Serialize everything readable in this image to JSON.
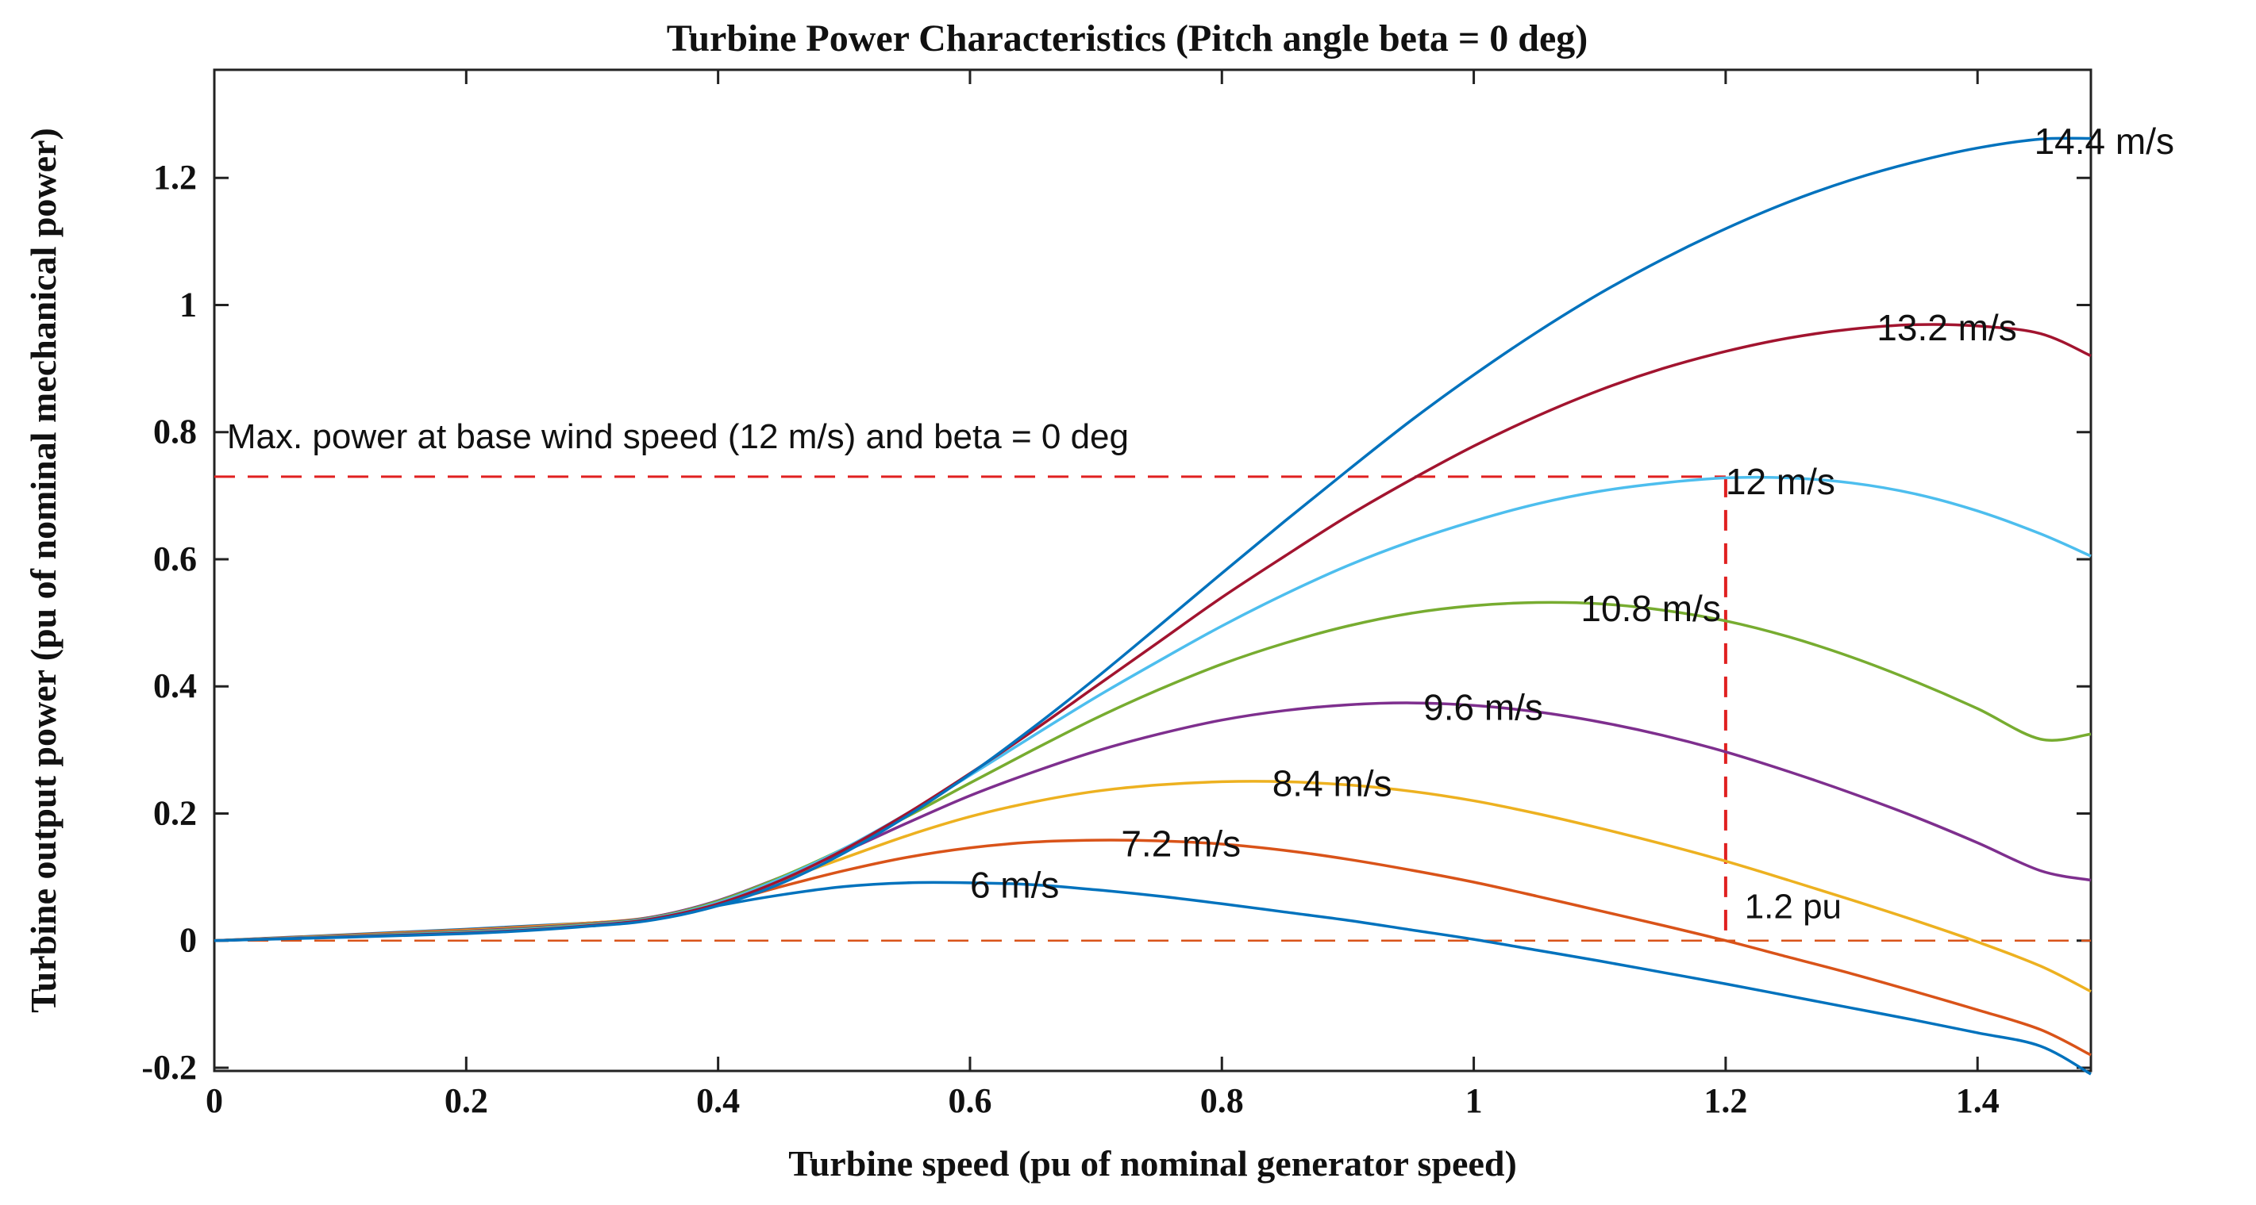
{
  "chart_data": {
    "type": "line",
    "title": "Turbine Power Characteristics (Pitch angle beta = 0 deg)",
    "xlabel": "Turbine speed (pu of nominal generator speed)",
    "ylabel": "Turbine output power (pu of nominal mechanical power)",
    "xlim": [
      0,
      1.49
    ],
    "ylim": [
      -0.205,
      1.37
    ],
    "xticks": [
      0,
      0.2,
      0.4,
      0.6,
      0.8,
      1,
      1.2,
      1.4
    ],
    "xtick_labels": [
      "0",
      "0.2",
      "0.4",
      "0.6",
      "0.8",
      "1",
      "1.2",
      "1.4"
    ],
    "yticks": [
      -0.2,
      0,
      0.2,
      0.4,
      0.6,
      0.8,
      1,
      1.2
    ],
    "ytick_labels": [
      "-0.2",
      "0",
      "0.2",
      "0.4",
      "0.6",
      "0.8",
      "1",
      "1.2"
    ],
    "grid": false,
    "series": [
      {
        "name": "6 m/s",
        "label": "6 m/s",
        "color": "#0072BD",
        "label_x": 0.6,
        "label_y": 0.085,
        "x": [
          0,
          0.2,
          0.3,
          0.35,
          0.4,
          0.45,
          0.5,
          0.55,
          0.6,
          0.65,
          0.7,
          0.75,
          0.8,
          0.85,
          0.9,
          0.95,
          1.0,
          1.05,
          1.1,
          1.15,
          1.2,
          1.25,
          1.3,
          1.35,
          1.4,
          1.45,
          1.49
        ],
        "y": [
          0,
          0.018,
          0.028,
          0.035,
          0.055,
          0.072,
          0.085,
          0.091,
          0.091,
          0.088,
          0.08,
          0.07,
          0.058,
          0.045,
          0.032,
          0.017,
          0.002,
          -0.015,
          -0.032,
          -0.05,
          -0.068,
          -0.087,
          -0.106,
          -0.125,
          -0.145,
          -0.166,
          -0.21
        ]
      },
      {
        "name": "7.2 m/s",
        "label": "7.2 m/s",
        "color": "#D95319",
        "label_x": 0.72,
        "label_y": 0.15,
        "x": [
          0,
          0.2,
          0.3,
          0.35,
          0.4,
          0.45,
          0.5,
          0.55,
          0.6,
          0.65,
          0.7,
          0.75,
          0.8,
          0.85,
          0.9,
          0.95,
          1.0,
          1.05,
          1.1,
          1.15,
          1.2,
          1.25,
          1.3,
          1.35,
          1.4,
          1.45,
          1.49
        ],
        "y": [
          0,
          0.017,
          0.028,
          0.036,
          0.058,
          0.085,
          0.11,
          0.131,
          0.146,
          0.155,
          0.158,
          0.157,
          0.152,
          0.142,
          0.128,
          0.111,
          0.092,
          0.07,
          0.047,
          0.024,
          0.0,
          -0.026,
          -0.052,
          -0.08,
          -0.109,
          -0.14,
          -0.18
        ]
      },
      {
        "name": "8.4 m/s",
        "label": "8.4 m/s",
        "color": "#EDB120",
        "label_x": 0.84,
        "label_y": 0.245,
        "x": [
          0,
          0.2,
          0.3,
          0.35,
          0.4,
          0.45,
          0.5,
          0.55,
          0.6,
          0.65,
          0.7,
          0.75,
          0.8,
          0.85,
          0.9,
          0.95,
          1.0,
          1.05,
          1.1,
          1.15,
          1.2,
          1.25,
          1.3,
          1.35,
          1.4,
          1.45,
          1.49
        ],
        "y": [
          0,
          0.016,
          0.028,
          0.038,
          0.062,
          0.095,
          0.13,
          0.165,
          0.195,
          0.218,
          0.235,
          0.245,
          0.25,
          0.25,
          0.245,
          0.235,
          0.22,
          0.2,
          0.177,
          0.152,
          0.125,
          0.095,
          0.064,
          0.032,
          -0.002,
          -0.04,
          -0.08
        ]
      },
      {
        "name": "9.6 m/s",
        "label": "9.6 m/s",
        "color": "#7E2F8E",
        "label_x": 0.96,
        "label_y": 0.365,
        "x": [
          0,
          0.2,
          0.3,
          0.35,
          0.4,
          0.45,
          0.5,
          0.55,
          0.6,
          0.65,
          0.7,
          0.75,
          0.8,
          0.85,
          0.9,
          0.95,
          1.0,
          1.05,
          1.1,
          1.15,
          1.2,
          1.25,
          1.3,
          1.35,
          1.4,
          1.45,
          1.49
        ],
        "y": [
          0,
          0.015,
          0.027,
          0.038,
          0.063,
          0.1,
          0.14,
          0.185,
          0.228,
          0.265,
          0.298,
          0.325,
          0.347,
          0.362,
          0.371,
          0.374,
          0.37,
          0.36,
          0.344,
          0.323,
          0.297,
          0.266,
          0.232,
          0.195,
          0.154,
          0.11,
          0.095
        ]
      },
      {
        "name": "10.8 m/s",
        "label": "10.8 m/s",
        "color": "#77AC30",
        "label_x": 1.085,
        "label_y": 0.52,
        "x": [
          0,
          0.2,
          0.3,
          0.35,
          0.4,
          0.45,
          0.5,
          0.55,
          0.6,
          0.65,
          0.7,
          0.75,
          0.8,
          0.85,
          0.9,
          0.95,
          1.0,
          1.05,
          1.1,
          1.15,
          1.2,
          1.25,
          1.3,
          1.35,
          1.4,
          1.45,
          1.49
        ],
        "y": [
          0,
          0.014,
          0.026,
          0.037,
          0.062,
          0.1,
          0.145,
          0.195,
          0.248,
          0.3,
          0.35,
          0.395,
          0.435,
          0.468,
          0.495,
          0.515,
          0.527,
          0.532,
          0.53,
          0.52,
          0.503,
          0.478,
          0.446,
          0.408,
          0.365,
          0.317,
          0.325
        ]
      },
      {
        "name": "12 m/s",
        "label": "12 m/s",
        "color": "#4DBEEE",
        "label_x": 1.2,
        "label_y": 0.72,
        "x": [
          0,
          0.2,
          0.3,
          0.35,
          0.4,
          0.45,
          0.5,
          0.55,
          0.6,
          0.65,
          0.7,
          0.75,
          0.8,
          0.85,
          0.9,
          0.95,
          1.0,
          1.05,
          1.1,
          1.15,
          1.2,
          1.25,
          1.3,
          1.35,
          1.4,
          1.45,
          1.49
        ],
        "y": [
          0,
          0.013,
          0.025,
          0.036,
          0.06,
          0.098,
          0.145,
          0.2,
          0.26,
          0.322,
          0.383,
          0.44,
          0.495,
          0.545,
          0.59,
          0.628,
          0.66,
          0.687,
          0.707,
          0.72,
          0.728,
          0.728,
          0.72,
          0.703,
          0.676,
          0.64,
          0.605
        ]
      },
      {
        "name": "13.2 m/s",
        "label": "13.2 m/s",
        "color": "#A2142F",
        "label_x": 1.32,
        "label_y": 0.962,
        "x": [
          0,
          0.2,
          0.3,
          0.35,
          0.4,
          0.45,
          0.5,
          0.55,
          0.6,
          0.65,
          0.7,
          0.75,
          0.8,
          0.85,
          0.9,
          0.95,
          1.0,
          1.05,
          1.1,
          1.15,
          1.2,
          1.25,
          1.3,
          1.35,
          1.4,
          1.45,
          1.49
        ],
        "y": [
          0,
          0.012,
          0.024,
          0.035,
          0.058,
          0.095,
          0.143,
          0.2,
          0.263,
          0.33,
          0.4,
          0.47,
          0.54,
          0.605,
          0.668,
          0.725,
          0.778,
          0.825,
          0.866,
          0.9,
          0.927,
          0.948,
          0.962,
          0.969,
          0.967,
          0.955,
          0.92
        ]
      },
      {
        "name": "14.4 m/s",
        "label": "14.4 m/s",
        "color": "#0072BD",
        "label_x": 1.445,
        "label_y": 1.255,
        "x": [
          0,
          0.2,
          0.3,
          0.35,
          0.4,
          0.45,
          0.5,
          0.55,
          0.6,
          0.65,
          0.7,
          0.75,
          0.8,
          0.85,
          0.9,
          0.95,
          1.0,
          1.05,
          1.1,
          1.15,
          1.2,
          1.25,
          1.3,
          1.35,
          1.4,
          1.45,
          1.49
        ],
        "y": [
          0,
          0.011,
          0.023,
          0.033,
          0.055,
          0.09,
          0.138,
          0.196,
          0.262,
          0.335,
          0.413,
          0.495,
          0.578,
          0.66,
          0.74,
          0.818,
          0.89,
          0.957,
          1.018,
          1.072,
          1.12,
          1.162,
          1.197,
          1.225,
          1.247,
          1.261,
          1.262
        ]
      }
    ],
    "reference_lines": {
      "color": "#E02020",
      "max_power_y": 0.73,
      "zero_y": 0,
      "vertical_x": 1.2
    },
    "annotations": {
      "max_power_text": "Max. power at base wind speed (12 m/s) and beta = 0 deg",
      "max_power_x": 0.01,
      "max_power_y": 0.775,
      "speed_text": "1.2 pu",
      "speed_x": 1.215,
      "speed_y": 0.035
    }
  }
}
